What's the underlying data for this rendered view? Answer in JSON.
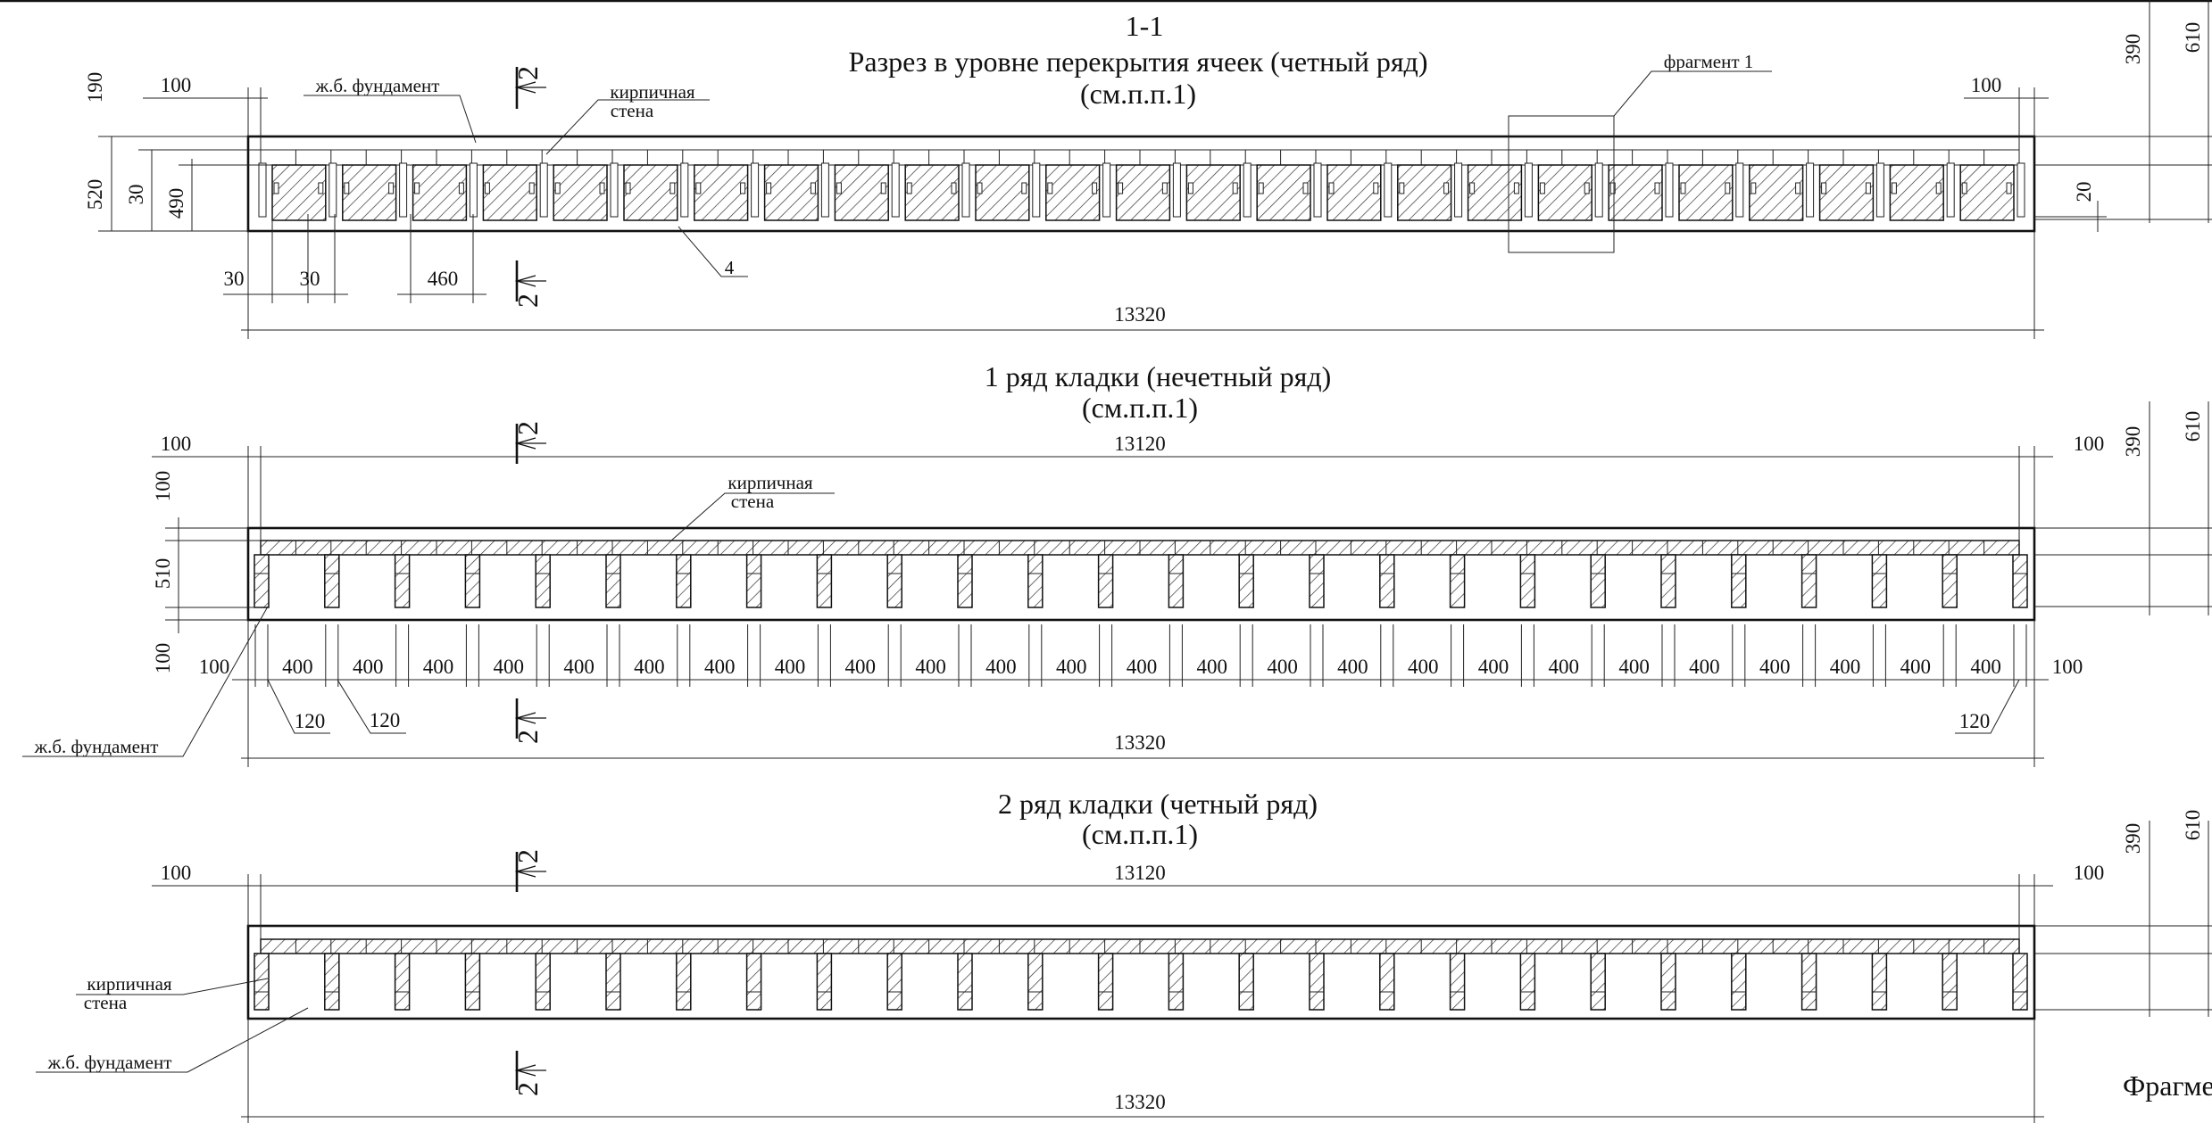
{
  "section_1": {
    "mark": "1-1",
    "title": "Разрез в уровне перекрытия ячеек (четный ряд)",
    "ref": "(см.п.п.1)",
    "labels": {
      "foundation": "ж.б. фундамент",
      "brick_wall_1": "кирпичная",
      "brick_wall_2": "стена",
      "fragment": "фрагмент 1",
      "item": "4"
    },
    "dims": {
      "d190": "190",
      "d520": "520",
      "d30v": "30",
      "d490": "490",
      "d100l": "100",
      "d100r": "100",
      "d30a": "30",
      "d30b": "30",
      "d460": "460",
      "total": "13320",
      "d20": "20",
      "r390": "390",
      "r610": "610"
    },
    "cut_mark": "2"
  },
  "section_2": {
    "title": "1 ряд кладки (нечетный ряд)",
    "ref": "(см.п.п.1)",
    "labels": {
      "brick_wall_1": "кирпичная",
      "brick_wall_2": "стена",
      "foundation": "ж.б. фундамент"
    },
    "dims": {
      "d100tl": "100",
      "inner": "13120",
      "d100tr": "100",
      "v100a": "100",
      "v510": "510",
      "v100b": "100",
      "b100l": "100",
      "b100r": "100",
      "cell": "400",
      "cell_count": 25,
      "d120a": "120",
      "d120b": "120",
      "d120c": "120",
      "total": "13320",
      "r390": "390",
      "r610": "610"
    },
    "cut_mark": "2"
  },
  "section_3": {
    "title": "2 ряд кладки (четный ряд)",
    "ref": "(см.п.п.1)",
    "labels": {
      "brick_wall_1": "кирпичная",
      "brick_wall_2": "стена",
      "foundation": "ж.б. фундамент"
    },
    "dims": {
      "d100l": "100",
      "inner": "13120",
      "d100r": "100",
      "total": "13320",
      "r390": "390",
      "r610": "610"
    },
    "cut_mark": "2",
    "fragment_caption": "Фрагме"
  }
}
